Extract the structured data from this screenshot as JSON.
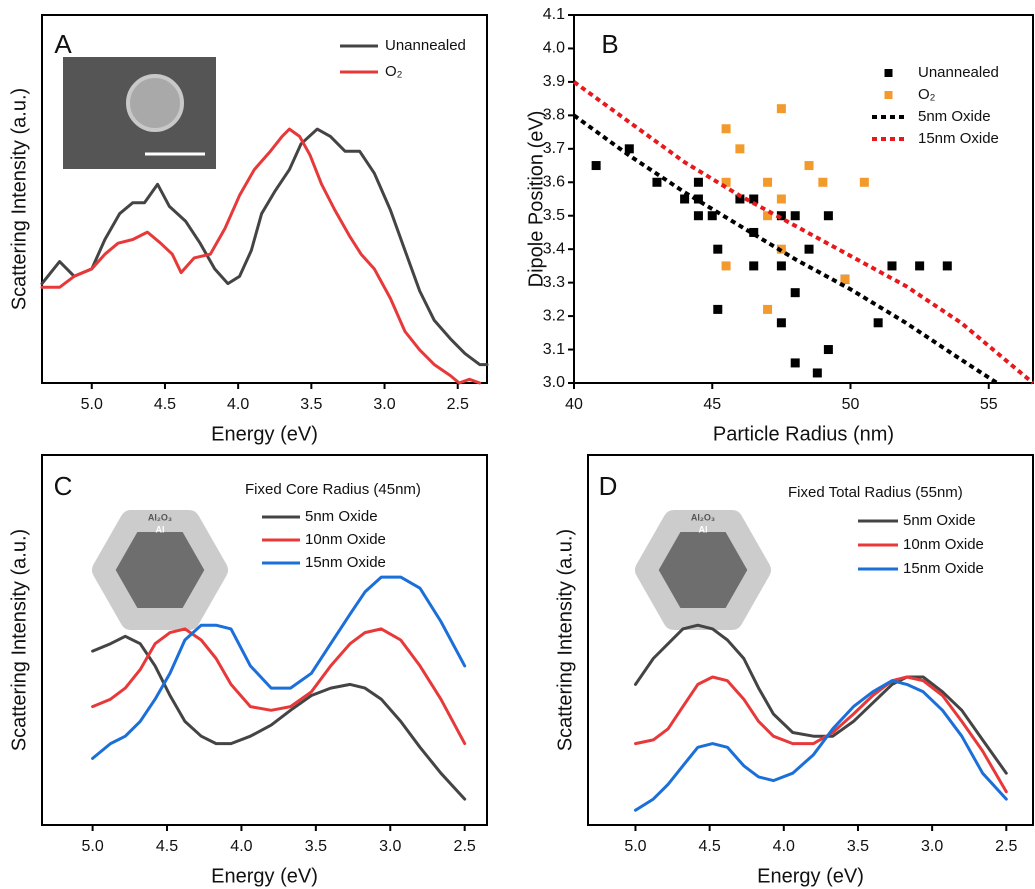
{
  "chart_data": [
    {
      "type": "line",
      "panel_label": "A",
      "x_label": "Energy (eV)",
      "y_label": "Scattering Intensity (a.u.)",
      "xlim": [
        5.34,
        2.3
      ],
      "ylim": [
        0,
        1
      ],
      "xticks": [
        {
          "value": 5,
          "label": "5.0"
        },
        4.5,
        {
          "value": 4,
          "label": "4.0"
        },
        3.5,
        {
          "value": 3,
          "label": "3.0"
        },
        2.5
      ],
      "legend": "top-right",
      "series": [
        {
          "name": "Unannealed",
          "color": "#444444",
          "style": "solid",
          "x": [
            5.34,
            5.22,
            5.12,
            5.0,
            4.91,
            4.81,
            4.72,
            4.64,
            4.55,
            4.47,
            4.36,
            4.26,
            4.16,
            4.07,
            3.99,
            3.91,
            3.84,
            3.75,
            3.65,
            3.57,
            3.46,
            3.37,
            3.27,
            3.17,
            3.07,
            2.96,
            2.86,
            2.76,
            2.66,
            2.55,
            2.45,
            2.35,
            2.3
          ],
          "values": [
            0.27,
            0.33,
            0.29,
            0.31,
            0.39,
            0.46,
            0.49,
            0.49,
            0.54,
            0.48,
            0.44,
            0.38,
            0.31,
            0.27,
            0.29,
            0.36,
            0.46,
            0.52,
            0.58,
            0.65,
            0.69,
            0.67,
            0.63,
            0.63,
            0.57,
            0.47,
            0.36,
            0.25,
            0.17,
            0.12,
            0.08,
            0.05,
            0.05
          ]
        },
        {
          "name": "O₂",
          "color": "#e8393a",
          "style": "solid",
          "x": [
            5.34,
            5.22,
            5.12,
            5.0,
            4.91,
            4.82,
            4.72,
            4.62,
            4.53,
            4.45,
            4.39,
            4.3,
            4.19,
            4.09,
            3.99,
            3.89,
            3.78,
            3.7,
            3.65,
            3.58,
            3.51,
            3.43,
            3.34,
            3.24,
            3.16,
            3.07,
            2.96,
            2.86,
            2.76,
            2.66,
            2.55,
            2.49,
            2.42,
            2.35
          ],
          "values": [
            0.26,
            0.26,
            0.29,
            0.31,
            0.35,
            0.38,
            0.39,
            0.41,
            0.38,
            0.35,
            0.3,
            0.34,
            0.35,
            0.42,
            0.51,
            0.58,
            0.63,
            0.67,
            0.69,
            0.67,
            0.62,
            0.54,
            0.47,
            0.4,
            0.35,
            0.31,
            0.23,
            0.14,
            0.09,
            0.05,
            0.02,
            0,
            0.01,
            0
          ]
        }
      ]
    },
    {
      "type": "scatter",
      "panel_label": "B",
      "x_label": "Particle Radius (nm)",
      "y_label": "Dipole Position (eV)",
      "xlim": [
        40,
        56.6
      ],
      "ylim": [
        3.0,
        4.1
      ],
      "xticks": [
        40,
        45,
        50,
        55
      ],
      "yticks": [
        {
          "value": 3,
          "label": "3.0"
        },
        3.1,
        3.2,
        3.3,
        3.4,
        3.5,
        3.6,
        3.7,
        3.8,
        3.9,
        {
          "value": 4,
          "label": "4.0"
        },
        4.1
      ],
      "legend": "top-right",
      "series": [
        {
          "name": "Unannealed",
          "color": "#000000",
          "style": "square",
          "x": [
            40.8,
            42.0,
            43.0,
            44.0,
            44.5,
            44.5,
            44.5,
            45.0,
            45.2,
            45.2,
            46.0,
            46.5,
            46.5,
            46.5,
            47.5,
            47.5,
            47.5,
            48.0,
            48.0,
            48.0,
            48.5,
            48.8,
            49.2,
            49.2,
            49.8,
            51.0,
            51.5,
            52.5,
            53.5
          ],
          "values": [
            3.65,
            3.7,
            3.6,
            3.55,
            3.6,
            3.55,
            3.5,
            3.5,
            3.4,
            3.22,
            3.55,
            3.55,
            3.45,
            3.35,
            3.5,
            3.35,
            3.18,
            3.5,
            3.27,
            3.06,
            3.4,
            3.03,
            3.5,
            3.1,
            3.31,
            3.18,
            3.35,
            3.35,
            3.35
          ]
        },
        {
          "name": "O₂",
          "color": "#f39a2c",
          "style": "square",
          "x": [
            45.5,
            45.5,
            45.5,
            46.0,
            47.0,
            47.0,
            47.0,
            47.5,
            47.5,
            47.5,
            48.5,
            49.0,
            49.8,
            50.5
          ],
          "values": [
            3.76,
            3.6,
            3.35,
            3.7,
            3.6,
            3.5,
            3.22,
            3.82,
            3.55,
            3.4,
            3.65,
            3.6,
            3.31,
            3.6
          ]
        },
        {
          "name": "5nm Oxide",
          "color": "#000000",
          "style": "dashed",
          "x": [
            40,
            42,
            44,
            46,
            48,
            50,
            52,
            54,
            55.3
          ],
          "values": [
            3.8,
            3.68,
            3.57,
            3.47,
            3.37,
            3.28,
            3.18,
            3.07,
            3.0
          ]
        },
        {
          "name": "15nm Oxide",
          "color": "#e8191c",
          "style": "dashed",
          "x": [
            40,
            42,
            44,
            46,
            48,
            50,
            52,
            54,
            56.6
          ],
          "values": [
            3.9,
            3.78,
            3.66,
            3.56,
            3.47,
            3.38,
            3.29,
            3.18,
            3.0
          ]
        }
      ]
    },
    {
      "type": "line",
      "panel_label": "C",
      "x_label": "Energy (eV)",
      "y_label": "Scattering Intensity (a.u.)",
      "annotation": "Fixed Core Radius (45nm)",
      "inset_labels": [
        "Al₂O₃",
        "Al"
      ],
      "xlim": [
        5.34,
        2.35
      ],
      "ylim": [
        0,
        1
      ],
      "xticks": [
        {
          "value": 5,
          "label": "5.0"
        },
        4.5,
        {
          "value": 4,
          "label": "4.0"
        },
        3.5,
        {
          "value": 3,
          "label": "3.0"
        },
        2.5
      ],
      "legend": "top-right",
      "x": [
        5.0,
        4.88,
        4.78,
        4.68,
        4.58,
        4.48,
        4.38,
        4.27,
        4.17,
        4.07,
        3.94,
        3.8,
        3.67,
        3.53,
        3.4,
        3.27,
        3.17,
        3.06,
        2.93,
        2.8,
        2.66,
        2.5
      ],
      "series": [
        {
          "name": "5nm Oxide",
          "color": "#444444",
          "style": "solid",
          "values": [
            0.47,
            0.49,
            0.51,
            0.49,
            0.43,
            0.35,
            0.28,
            0.24,
            0.22,
            0.22,
            0.24,
            0.27,
            0.31,
            0.35,
            0.37,
            0.38,
            0.37,
            0.34,
            0.28,
            0.21,
            0.14,
            0.07
          ]
        },
        {
          "name": "10nm Oxide",
          "color": "#e8393a",
          "style": "solid",
          "values": [
            0.32,
            0.34,
            0.37,
            0.42,
            0.49,
            0.52,
            0.53,
            0.5,
            0.45,
            0.38,
            0.32,
            0.31,
            0.32,
            0.36,
            0.43,
            0.49,
            0.52,
            0.53,
            0.5,
            0.43,
            0.34,
            0.22
          ]
        },
        {
          "name": "15nm Oxide",
          "color": "#1a6fd8",
          "style": "solid",
          "values": [
            0.18,
            0.22,
            0.24,
            0.28,
            0.34,
            0.41,
            0.5,
            0.54,
            0.54,
            0.53,
            0.43,
            0.37,
            0.37,
            0.41,
            0.49,
            0.57,
            0.63,
            0.67,
            0.67,
            0.64,
            0.55,
            0.43
          ]
        }
      ]
    },
    {
      "type": "line",
      "panel_label": "D",
      "x_label": "Energy (eV)",
      "y_label": "Scattering Intensity (a.u.)",
      "annotation": "Fixed Total Radius (55nm)",
      "inset_labels": [
        "Al₂O₃",
        "Al"
      ],
      "xlim": [
        5.32,
        2.32
      ],
      "ylim": [
        0,
        1
      ],
      "xticks": [
        {
          "value": 5,
          "label": "5.0"
        },
        4.5,
        {
          "value": 4,
          "label": "4.0"
        },
        3.5,
        {
          "value": 3,
          "label": "3.0"
        },
        2.5
      ],
      "legend": "top-right",
      "x": [
        5.0,
        4.88,
        4.78,
        4.68,
        4.58,
        4.48,
        4.38,
        4.27,
        4.17,
        4.07,
        3.94,
        3.8,
        3.67,
        3.53,
        3.4,
        3.27,
        3.17,
        3.06,
        2.93,
        2.8,
        2.66,
        2.5
      ],
      "series": [
        {
          "name": "5nm Oxide",
          "color": "#444444",
          "style": "solid",
          "values": [
            0.38,
            0.45,
            0.49,
            0.53,
            0.54,
            0.53,
            0.5,
            0.45,
            0.37,
            0.3,
            0.25,
            0.24,
            0.24,
            0.28,
            0.33,
            0.38,
            0.4,
            0.4,
            0.36,
            0.31,
            0.23,
            0.14
          ]
        },
        {
          "name": "10nm Oxide",
          "color": "#e8393a",
          "style": "solid",
          "values": [
            0.22,
            0.23,
            0.26,
            0.32,
            0.38,
            0.4,
            0.39,
            0.34,
            0.28,
            0.24,
            0.22,
            0.22,
            0.25,
            0.3,
            0.35,
            0.39,
            0.4,
            0.39,
            0.35,
            0.28,
            0.2,
            0.09
          ]
        },
        {
          "name": "15nm Oxide",
          "color": "#1a6fd8",
          "style": "solid",
          "values": [
            0.04,
            0.07,
            0.11,
            0.16,
            0.21,
            0.22,
            0.21,
            0.16,
            0.13,
            0.12,
            0.14,
            0.19,
            0.26,
            0.32,
            0.36,
            0.39,
            0.38,
            0.36,
            0.31,
            0.24,
            0.14,
            0.07
          ]
        }
      ]
    }
  ]
}
